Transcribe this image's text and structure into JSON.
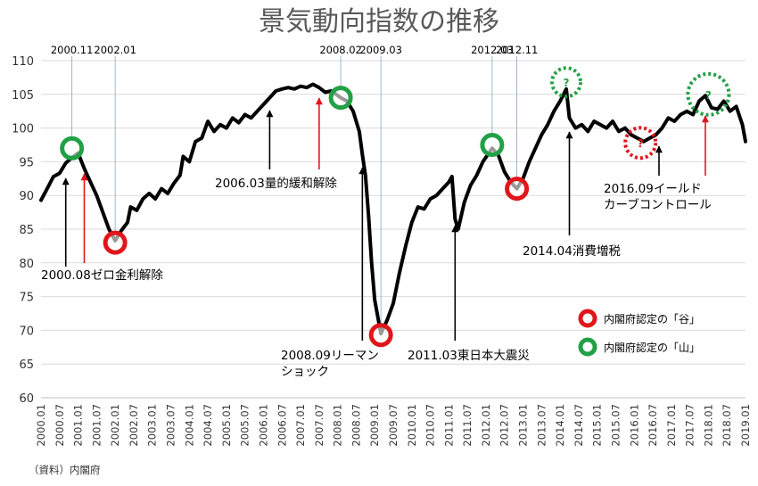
{
  "chart_data": {
    "type": "line",
    "title": "景気動向指数の推移",
    "source": "（資料）内閣府",
    "ylim": [
      60,
      110
    ],
    "yticks": [
      60,
      65,
      70,
      75,
      80,
      85,
      90,
      95,
      100,
      105,
      110
    ],
    "xlim": [
      "2000.01",
      "2019.01"
    ],
    "xticks": [
      "2000.01",
      "2000.07",
      "2001.01",
      "2001.07",
      "2002.01",
      "2002.07",
      "2003.01",
      "2003.07",
      "2004.01",
      "2004.07",
      "2005.01",
      "2005.07",
      "2006.01",
      "2006.07",
      "2007.01",
      "2007.07",
      "2008.01",
      "2008.07",
      "2009.01",
      "2009.07",
      "2010.01",
      "2010.07",
      "2011.01",
      "2011.07",
      "2012.01",
      "2012.07",
      "2013.01",
      "2013.07",
      "2014.01",
      "2014.07",
      "2015.01",
      "2015.07",
      "2016.01",
      "2016.07",
      "2017.01",
      "2017.07",
      "2018.01",
      "2018.07",
      "2019.01"
    ],
    "grid": "horizontal",
    "series": [
      {
        "name": "",
        "points": [
          [
            "2000.01",
            89.3
          ],
          [
            "2000.03",
            91.0
          ],
          [
            "2000.05",
            92.8
          ],
          [
            "2000.07",
            93.3
          ],
          [
            "2000.09",
            94.8
          ],
          [
            "2000.11",
            95.6
          ],
          [
            "2001.01",
            96.3
          ],
          [
            "2001.03",
            94.0
          ],
          [
            "2001.05",
            92.0
          ],
          [
            "2001.07",
            90.0
          ],
          [
            "2001.09",
            87.5
          ],
          [
            "2001.11",
            85.0
          ],
          [
            "2002.01",
            83.3
          ],
          [
            "2002.03",
            84.8
          ],
          [
            "2002.05",
            86.0
          ],
          [
            "2002.06",
            88.3
          ],
          [
            "2002.08",
            87.8
          ],
          [
            "2002.10",
            89.5
          ],
          [
            "2002.12",
            90.3
          ],
          [
            "2003.02",
            89.5
          ],
          [
            "2003.04",
            91.0
          ],
          [
            "2003.06",
            90.3
          ],
          [
            "2003.08",
            91.8
          ],
          [
            "2003.10",
            93.0
          ],
          [
            "2003.11",
            95.8
          ],
          [
            "2004.01",
            95.0
          ],
          [
            "2004.03",
            98.0
          ],
          [
            "2004.05",
            98.5
          ],
          [
            "2004.07",
            101.0
          ],
          [
            "2004.09",
            99.5
          ],
          [
            "2004.11",
            100.5
          ],
          [
            "2005.01",
            100.0
          ],
          [
            "2005.03",
            101.5
          ],
          [
            "2005.05",
            100.8
          ],
          [
            "2005.07",
            102.0
          ],
          [
            "2005.09",
            101.5
          ],
          [
            "2005.11",
            102.5
          ],
          [
            "2006.01",
            103.5
          ],
          [
            "2006.03",
            104.5
          ],
          [
            "2006.05",
            105.5
          ],
          [
            "2006.07",
            105.8
          ],
          [
            "2006.09",
            106.0
          ],
          [
            "2006.11",
            105.8
          ],
          [
            "2007.01",
            106.2
          ],
          [
            "2007.03",
            106.0
          ],
          [
            "2007.05",
            106.5
          ],
          [
            "2007.07",
            106.0
          ],
          [
            "2007.09",
            105.3
          ],
          [
            "2007.11",
            105.5
          ],
          [
            "2008.02",
            104.5
          ],
          [
            "2008.04",
            104.0
          ],
          [
            "2008.06",
            102.5
          ],
          [
            "2008.08",
            99.5
          ],
          [
            "2008.09",
            96.0
          ],
          [
            "2008.10",
            93.0
          ],
          [
            "2008.11",
            87.0
          ],
          [
            "2008.12",
            80.0
          ],
          [
            "2009.01",
            74.5
          ],
          [
            "2009.03",
            69.5
          ],
          [
            "2009.05",
            71.5
          ],
          [
            "2009.07",
            74.0
          ],
          [
            "2009.09",
            78.5
          ],
          [
            "2009.11",
            82.5
          ],
          [
            "2010.01",
            86.0
          ],
          [
            "2010.03",
            88.3
          ],
          [
            "2010.05",
            88.0
          ],
          [
            "2010.07",
            89.5
          ],
          [
            "2010.09",
            90.0
          ],
          [
            "2010.11",
            91.0
          ],
          [
            "2011.01",
            92.0
          ],
          [
            "2011.02",
            92.8
          ],
          [
            "2011.03",
            86.5
          ],
          [
            "2011.04",
            85.0
          ],
          [
            "2011.06",
            89.0
          ],
          [
            "2011.08",
            91.5
          ],
          [
            "2011.10",
            93.0
          ],
          [
            "2011.12",
            95.0
          ],
          [
            "2012.03",
            97.0
          ],
          [
            "2012.05",
            96.0
          ],
          [
            "2012.07",
            93.5
          ],
          [
            "2012.09",
            92.0
          ],
          [
            "2012.11",
            91.0
          ],
          [
            "2013.01",
            92.5
          ],
          [
            "2013.03",
            95.0
          ],
          [
            "2013.05",
            97.0
          ],
          [
            "2013.07",
            99.0
          ],
          [
            "2013.09",
            100.5
          ],
          [
            "2013.11",
            102.5
          ],
          [
            "2014.01",
            104.0
          ],
          [
            "2014.03",
            105.8
          ],
          [
            "2014.04",
            101.5
          ],
          [
            "2014.06",
            100.0
          ],
          [
            "2014.08",
            100.5
          ],
          [
            "2014.10",
            99.5
          ],
          [
            "2014.12",
            101.0
          ],
          [
            "2015.02",
            100.5
          ],
          [
            "2015.04",
            100.0
          ],
          [
            "2015.06",
            101.0
          ],
          [
            "2015.08",
            99.5
          ],
          [
            "2015.10",
            100.0
          ],
          [
            "2015.12",
            99.0
          ],
          [
            "2016.02",
            98.5
          ],
          [
            "2016.04",
            98.0
          ],
          [
            "2016.06",
            98.5
          ],
          [
            "2016.08",
            99.0
          ],
          [
            "2016.10",
            100.0
          ],
          [
            "2016.12",
            101.5
          ],
          [
            "2017.02",
            101.0
          ],
          [
            "2017.04",
            102.0
          ],
          [
            "2017.06",
            102.5
          ],
          [
            "2017.08",
            102.0
          ],
          [
            "2017.10",
            104.0
          ],
          [
            "2017.12",
            104.8
          ],
          [
            "2018.02",
            103.0
          ],
          [
            "2018.04",
            102.8
          ],
          [
            "2018.06",
            104.0
          ],
          [
            "2018.08",
            102.5
          ],
          [
            "2018.10",
            103.2
          ],
          [
            "2018.12",
            100.5
          ],
          [
            "2019.01",
            98.0
          ]
        ]
      }
    ],
    "markers": [
      {
        "type": "peak",
        "color": "#22a046",
        "x": "2000.11",
        "y": 97.0,
        "dashed": false
      },
      {
        "type": "trough",
        "color": "#e0161b",
        "x": "2002.01",
        "y": 83.0,
        "dashed": false
      },
      {
        "type": "peak",
        "color": "#22a046",
        "x": "2008.02",
        "y": 104.5,
        "dashed": false
      },
      {
        "type": "trough",
        "color": "#e0161b",
        "x": "2009.03",
        "y": 69.3,
        "dashed": false
      },
      {
        "type": "peak",
        "color": "#22a046",
        "x": "2012.03",
        "y": 97.5,
        "dashed": false
      },
      {
        "type": "trough",
        "color": "#e0161b",
        "x": "2012.11",
        "y": 91.0,
        "dashed": false
      },
      {
        "type": "peak",
        "color": "#22a046",
        "x": "2014.03",
        "y": 106.8,
        "dashed": true,
        "label": "?"
      },
      {
        "type": "trough",
        "color": "#e0161b",
        "x": "2016.03",
        "y": 97.8,
        "dashed": true,
        "label": "?"
      },
      {
        "type": "peak",
        "color": "#22a046",
        "x": "2018.01",
        "y": 105.0,
        "dashed": true,
        "label": "?"
      }
    ],
    "date_labels": [
      {
        "text": "2000.11",
        "x": "2000.11"
      },
      {
        "text": "2002.01",
        "x": "2002.01"
      },
      {
        "text": "2008.02",
        "x": "2008.02"
      },
      {
        "text": "2009.03",
        "x": "2009.03"
      },
      {
        "text": "2012.03",
        "x": "2012.03"
      },
      {
        "text": "2012.11",
        "x": "2012.11"
      }
    ],
    "annotations": [
      {
        "lines": [
          "2000.08ゼロ金利解除"
        ],
        "arrow_x": "2000.09",
        "color": "#000000"
      },
      {
        "lines": [
          ""
        ],
        "arrow_x": "2001.03",
        "color": "#e0161b"
      },
      {
        "lines": [
          "2006.03量的緩和解除"
        ],
        "arrow_x": "2006.03",
        "color": "#000000"
      },
      {
        "lines": [
          ""
        ],
        "arrow_x": "2007.07",
        "color": "#e0161b"
      },
      {
        "lines": [
          "2008.09リーマン",
          "ショック"
        ],
        "arrow_x": "2008.09",
        "color": "#000000"
      },
      {
        "lines": [
          "2011.03東日本大震災"
        ],
        "arrow_x": "2011.03",
        "color": "#000000"
      },
      {
        "lines": [
          "2014.04消費増税"
        ],
        "arrow_x": "2014.04",
        "color": "#000000"
      },
      {
        "lines": [
          "2016.09イールド",
          "カーブコントロール"
        ],
        "arrow_x": "2016.09",
        "color": "#000000"
      },
      {
        "lines": [
          ""
        ],
        "arrow_x": "2017.12",
        "color": "#e0161b"
      }
    ],
    "legend": {
      "position": "right",
      "items": [
        {
          "label": "内閣府認定の「谷」",
          "color": "#e0161b"
        },
        {
          "label": "内閣府認定の「山」",
          "color": "#22a046"
        }
      ]
    }
  }
}
